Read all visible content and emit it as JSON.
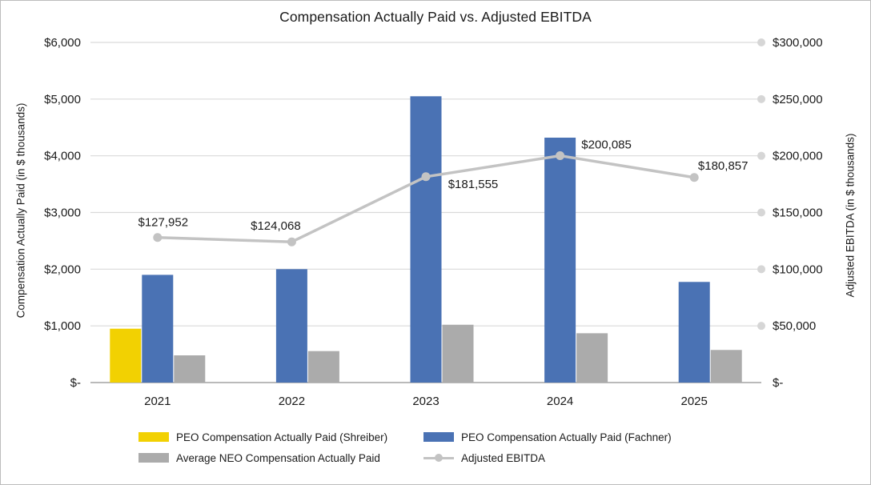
{
  "chart_data": {
    "type": "bar",
    "subtype": "combo-bar-line-dual-axis",
    "title": "Compensation Actually Paid vs. Adjusted EBITDA",
    "categories": [
      "2021",
      "2022",
      "2023",
      "2024",
      "2025"
    ],
    "series": [
      {
        "name": "PEO Compensation Actually Paid (Shreiber)",
        "type": "bar",
        "axis": "left",
        "color": "#F2D102",
        "values": [
          950,
          null,
          null,
          null,
          null
        ]
      },
      {
        "name": "PEO Compensation Actually Paid (Fachner)",
        "type": "bar",
        "axis": "left",
        "color": "#4A72B4",
        "values": [
          1900,
          2000,
          5050,
          4320,
          1775
        ]
      },
      {
        "name": "Average NEO Compensation Actually Paid",
        "type": "bar",
        "axis": "left",
        "color": "#ABABAB",
        "values": [
          480,
          555,
          1020,
          870,
          575
        ]
      },
      {
        "name": "Adjusted EBITDA",
        "type": "line",
        "axis": "right",
        "color": "#C3C3C3",
        "values": [
          127952,
          124068,
          181555,
          200085,
          180857
        ],
        "data_labels": [
          "$127,952",
          "$124,068",
          "$181,555",
          "$200,085",
          "$180,857"
        ],
        "label_offsets": [
          [
            7,
            -19
          ],
          [
            -20,
            -20
          ],
          [
            59,
            9
          ],
          [
            58,
            -14
          ],
          [
            36,
            -15
          ]
        ]
      }
    ],
    "left_axis": {
      "title": "Compensation Actually Paid (in $ thousands)",
      "min": 0,
      "max": 6000,
      "step": 1000,
      "ticks": [
        "$6,000",
        "$5,000",
        "$4,000",
        "$3,000",
        "$2,000",
        "$1,000",
        "$-"
      ]
    },
    "right_axis": {
      "title": "Adjusted EBITDA (in $ thousands)",
      "min": 0,
      "max": 300000,
      "step": 50000,
      "ticks": [
        "$300,000",
        "$250,000",
        "$200,000",
        "$150,000",
        "$100,000",
        "$50,000",
        "$-"
      ]
    },
    "grid": true,
    "gridline_color": "#DADADA",
    "gridline_end_dot_color": "#D6D6D6",
    "axis_line_color": "#A3A3A3",
    "text_color": "#1a1a1a",
    "legend": {
      "position": "bottom",
      "items": [
        {
          "label": "PEO Compensation Actually Paid (Shreiber)",
          "swatch": "bar",
          "color": "#F2D102"
        },
        {
          "label": "PEO Compensation Actually Paid (Fachner)",
          "swatch": "bar",
          "color": "#4A72B4"
        },
        {
          "label": "Average NEO Compensation Actually Paid",
          "swatch": "bar",
          "color": "#ABABAB"
        },
        {
          "label": "Adjusted EBITDA",
          "swatch": "line-marker",
          "color": "#C3C3C3"
        }
      ]
    }
  }
}
